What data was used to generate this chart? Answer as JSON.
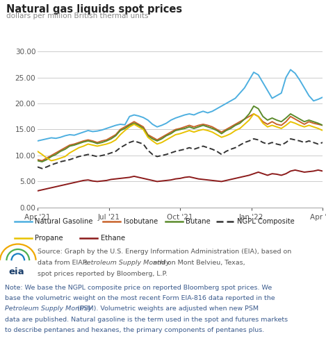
{
  "title": "Natural gas liquids spot prices",
  "subtitle": "dollars per million British thermal units",
  "ylim": [
    0.0,
    30.0
  ],
  "yticks": [
    0.0,
    5.0,
    10.0,
    15.0,
    20.0,
    25.0,
    30.0
  ],
  "xlabel_ticks": [
    "Apr '21",
    "Jul '21",
    "Oct '21",
    "Jan '22",
    "Apr '22"
  ],
  "series": {
    "Natural Gasoline": {
      "color": "#4DAFE0",
      "lw": 1.4,
      "dashes": [],
      "values": [
        12.8,
        13.0,
        13.2,
        13.4,
        13.3,
        13.5,
        13.8,
        14.0,
        13.9,
        14.2,
        14.5,
        14.8,
        14.6,
        14.7,
        14.9,
        15.2,
        15.5,
        15.8,
        16.0,
        15.9,
        17.5,
        17.8,
        17.6,
        17.3,
        16.8,
        16.0,
        15.5,
        15.8,
        16.2,
        16.8,
        17.2,
        17.5,
        17.8,
        18.0,
        17.8,
        18.2,
        18.5,
        18.2,
        18.5,
        19.0,
        19.5,
        20.0,
        20.5,
        21.0,
        22.0,
        23.0,
        24.5,
        26.0,
        25.5,
        24.0,
        22.5,
        21.0,
        21.5,
        22.0,
        25.0,
        26.5,
        25.8,
        24.5,
        23.0,
        21.5,
        20.5,
        20.8,
        21.2
      ]
    },
    "Isobutane": {
      "color": "#C8622A",
      "lw": 1.4,
      "dashes": [],
      "values": [
        9.2,
        9.0,
        9.5,
        10.0,
        10.5,
        11.0,
        11.5,
        12.0,
        12.2,
        12.5,
        12.8,
        13.0,
        12.8,
        12.5,
        12.8,
        13.0,
        13.5,
        14.0,
        15.0,
        15.5,
        16.0,
        16.5,
        16.0,
        15.5,
        14.0,
        13.5,
        13.0,
        13.5,
        14.0,
        14.5,
        15.0,
        15.2,
        15.5,
        15.8,
        15.5,
        15.8,
        16.0,
        15.8,
        15.5,
        15.0,
        14.5,
        15.0,
        15.5,
        16.0,
        16.5,
        17.0,
        17.5,
        18.0,
        17.5,
        16.5,
        16.0,
        16.5,
        16.0,
        15.8,
        16.5,
        17.5,
        17.0,
        16.5,
        16.0,
        16.5,
        16.2,
        16.0,
        15.8
      ]
    },
    "Butane": {
      "color": "#5A8A2B",
      "lw": 1.4,
      "dashes": [],
      "values": [
        9.0,
        8.8,
        9.2,
        9.8,
        10.2,
        10.8,
        11.2,
        11.8,
        12.0,
        12.3,
        12.6,
        12.8,
        12.6,
        12.3,
        12.5,
        12.8,
        13.2,
        13.8,
        14.8,
        15.2,
        15.8,
        16.2,
        15.8,
        15.2,
        13.8,
        13.2,
        12.8,
        13.2,
        13.8,
        14.2,
        14.8,
        15.0,
        15.2,
        15.5,
        15.2,
        15.5,
        15.8,
        15.5,
        15.2,
        14.8,
        14.2,
        14.8,
        15.2,
        15.8,
        16.2,
        17.0,
        18.0,
        19.5,
        19.0,
        17.5,
        16.8,
        17.2,
        16.8,
        16.5,
        17.2,
        18.0,
        17.5,
        17.0,
        16.5,
        16.8,
        16.5,
        16.2,
        15.8
      ]
    },
    "NGPL Composite": {
      "color": "#333333",
      "lw": 1.4,
      "dashes": [
        4,
        2
      ],
      "values": [
        7.8,
        7.5,
        7.8,
        8.2,
        8.5,
        8.8,
        9.0,
        9.2,
        9.5,
        9.8,
        10.0,
        10.2,
        10.0,
        9.8,
        10.0,
        10.2,
        10.5,
        10.8,
        11.5,
        12.0,
        12.5,
        12.8,
        12.5,
        12.2,
        11.0,
        10.2,
        9.8,
        10.0,
        10.2,
        10.5,
        10.8,
        11.0,
        11.2,
        11.5,
        11.2,
        11.5,
        11.8,
        11.5,
        11.2,
        10.8,
        10.2,
        10.8,
        11.2,
        11.5,
        12.0,
        12.5,
        12.8,
        13.2,
        13.0,
        12.5,
        12.2,
        12.5,
        12.2,
        12.0,
        12.5,
        13.2,
        13.0,
        12.8,
        12.5,
        12.8,
        12.5,
        12.2,
        12.5
      ]
    },
    "Propane": {
      "color": "#E8C200",
      "lw": 1.4,
      "dashes": [],
      "values": [
        10.8,
        10.2,
        9.5,
        9.0,
        9.2,
        9.5,
        9.8,
        10.5,
        11.0,
        11.5,
        11.8,
        12.2,
        12.0,
        11.8,
        12.0,
        12.2,
        12.5,
        13.0,
        14.0,
        14.8,
        15.5,
        16.0,
        15.5,
        15.0,
        13.5,
        12.8,
        12.2,
        12.5,
        13.0,
        13.5,
        14.0,
        14.2,
        14.5,
        14.8,
        14.5,
        14.8,
        15.0,
        14.8,
        14.5,
        14.0,
        13.5,
        13.8,
        14.2,
        14.8,
        15.2,
        16.0,
        16.8,
        18.0,
        17.5,
        16.2,
        15.5,
        15.8,
        15.5,
        15.2,
        15.8,
        16.5,
        16.2,
        15.8,
        15.5,
        15.8,
        15.5,
        15.2,
        14.8
      ]
    },
    "Ethane": {
      "color": "#8B1A1A",
      "lw": 1.4,
      "dashes": [],
      "values": [
        3.2,
        3.4,
        3.6,
        3.8,
        4.0,
        4.2,
        4.4,
        4.6,
        4.8,
        5.0,
        5.2,
        5.3,
        5.1,
        5.0,
        5.1,
        5.2,
        5.4,
        5.5,
        5.6,
        5.7,
        5.8,
        6.0,
        5.8,
        5.6,
        5.4,
        5.2,
        5.0,
        5.1,
        5.2,
        5.3,
        5.5,
        5.6,
        5.8,
        5.9,
        5.7,
        5.5,
        5.4,
        5.3,
        5.2,
        5.1,
        5.0,
        5.2,
        5.4,
        5.6,
        5.8,
        6.0,
        6.2,
        6.5,
        6.8,
        6.5,
        6.2,
        6.5,
        6.4,
        6.2,
        6.5,
        7.0,
        7.2,
        7.0,
        6.8,
        6.9,
        7.0,
        7.2,
        7.0
      ]
    }
  },
  "series_order": [
    "Natural Gasoline",
    "Isobutane",
    "Butane",
    "NGPL Composite",
    "Propane",
    "Ethane"
  ],
  "bg_color": "#FFFFFF",
  "plot_bg_color": "#FFFFFF",
  "grid_color": "#CCCCCC",
  "legend_bg": "#EFEFEF",
  "title_color": "#222222",
  "subtitle_color": "#888888",
  "tick_color": "#555555",
  "note_color": "#3A5A8C",
  "source_color": "#555555"
}
